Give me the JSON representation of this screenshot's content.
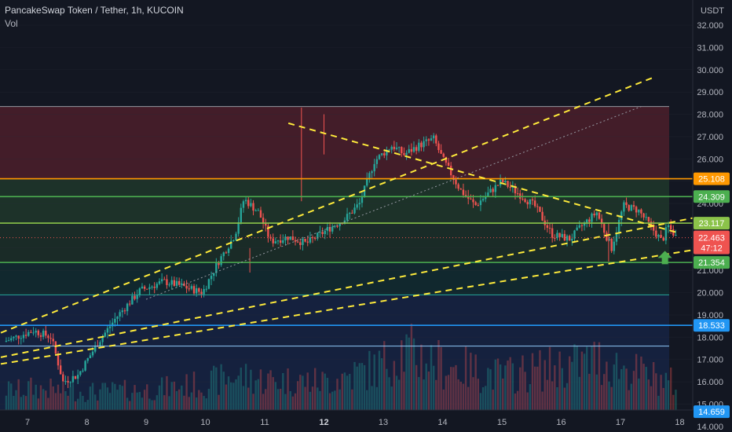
{
  "chart_data": {
    "type": "candlestick",
    "symbol": "PancakeSwap Token / Tether",
    "interval": "1h",
    "exchange": "KUCOIN",
    "indicator": "Vol",
    "currency": "USDT",
    "y_ticks": [
      "32.000",
      "31.000",
      "30.000",
      "29.000",
      "28.000",
      "27.000",
      "26.000",
      "25.000",
      "24.000",
      "23.000",
      "22.000",
      "21.000",
      "20.000",
      "19.000",
      "18.000",
      "17.000",
      "16.000",
      "15.000",
      "14.000"
    ],
    "x_ticks": [
      "7",
      "8",
      "9",
      "10",
      "11",
      "12",
      "13",
      "14",
      "15",
      "16",
      "17",
      "18"
    ],
    "last_price": "22.463",
    "countdown": "47:12",
    "levels": [
      {
        "label": "25.108",
        "value": 25.108,
        "color": "#ff9800"
      },
      {
        "label": "24.309",
        "value": 24.309,
        "color": "#4caf50"
      },
      {
        "label": "23.117",
        "value": 23.117,
        "color": "#8bc34a"
      },
      {
        "label": "21.354",
        "value": 21.354,
        "color": "#4caf50"
      },
      {
        "label": "18.533",
        "value": 18.533,
        "color": "#2196f3"
      },
      {
        "label": "14.659",
        "value": 14.659,
        "color": "#2196f3"
      }
    ],
    "plain_levels": [
      {
        "value": 28.35,
        "color": "#9598a1"
      },
      {
        "value": 19.9,
        "color": "#26a69a"
      },
      {
        "value": 17.6,
        "color": "#90caf9"
      }
    ],
    "zones": [
      {
        "from": 25.108,
        "to": 28.35,
        "color": "#f23645",
        "opacity": 0.22
      },
      {
        "from": 23.117,
        "to": 25.108,
        "color": "#4caf50",
        "opacity": 0.18
      },
      {
        "from": 21.354,
        "to": 23.117,
        "color": "#4caf50",
        "opacity": 0.13
      },
      {
        "from": 19.9,
        "to": 21.354,
        "color": "#089981",
        "opacity": 0.13
      },
      {
        "from": 13.5,
        "to": 19.9,
        "color": "#2962ff",
        "opacity": 0.13
      }
    ],
    "trendlines_dashed": [
      {
        "x1": -0.45,
        "y1": 18.2,
        "x2": 10.6,
        "y2": 29.7,
        "color": "#ffeb3b"
      },
      {
        "x1": -0.45,
        "y1": 17.1,
        "x2": 13.0,
        "y2": 24.3,
        "color": "#ffeb3b"
      },
      {
        "x1": -0.45,
        "y1": 16.8,
        "x2": 12.1,
        "y2": 22.3,
        "color": "#ffeb3b"
      },
      {
        "x1": 4.4,
        "y1": 27.6,
        "x2": 10.95,
        "y2": 22.7,
        "color": "#ffeb3b"
      }
    ],
    "trendlines_dotted": [
      {
        "x1": 2.0,
        "y1": 19.7,
        "x2": 10.35,
        "y2": 28.35,
        "color": "#9598a1"
      }
    ],
    "candle_anchors": [
      {
        "x": -0.4,
        "p": 17.8
      },
      {
        "x": 0.1,
        "p": 18.3
      },
      {
        "x": 0.4,
        "p": 18.0
      },
      {
        "x": 0.6,
        "p": 16.0
      },
      {
        "x": 0.85,
        "p": 16.3
      },
      {
        "x": 1.2,
        "p": 17.8
      },
      {
        "x": 1.5,
        "p": 18.9
      },
      {
        "x": 1.9,
        "p": 20.1
      },
      {
        "x": 2.3,
        "p": 20.5
      },
      {
        "x": 2.6,
        "p": 20.3
      },
      {
        "x": 2.95,
        "p": 20.0
      },
      {
        "x": 3.2,
        "p": 21.3
      },
      {
        "x": 3.5,
        "p": 22.6
      },
      {
        "x": 3.65,
        "p": 24.2
      },
      {
        "x": 3.9,
        "p": 23.6
      },
      {
        "x": 4.1,
        "p": 22.3
      },
      {
        "x": 4.4,
        "p": 22.5
      },
      {
        "x": 4.7,
        "p": 22.2
      },
      {
        "x": 5.1,
        "p": 22.9
      },
      {
        "x": 5.35,
        "p": 23.3
      },
      {
        "x": 5.6,
        "p": 24.0
      },
      {
        "x": 5.85,
        "p": 25.9
      },
      {
        "x": 6.15,
        "p": 26.6
      },
      {
        "x": 6.35,
        "p": 26.2
      },
      {
        "x": 6.6,
        "p": 26.6
      },
      {
        "x": 6.85,
        "p": 26.9
      },
      {
        "x": 7.0,
        "p": 26.0
      },
      {
        "x": 7.3,
        "p": 24.6
      },
      {
        "x": 7.55,
        "p": 23.9
      },
      {
        "x": 7.75,
        "p": 24.4
      },
      {
        "x": 8.0,
        "p": 25.0
      },
      {
        "x": 8.3,
        "p": 24.4
      },
      {
        "x": 8.55,
        "p": 23.9
      },
      {
        "x": 8.85,
        "p": 22.6
      },
      {
        "x": 9.15,
        "p": 22.4
      },
      {
        "x": 9.35,
        "p": 23.0
      },
      {
        "x": 9.6,
        "p": 23.6
      },
      {
        "x": 9.75,
        "p": 22.6
      },
      {
        "x": 9.85,
        "p": 22.0
      },
      {
        "x": 10.05,
        "p": 23.9
      },
      {
        "x": 10.3,
        "p": 23.7
      },
      {
        "x": 10.5,
        "p": 23.0
      },
      {
        "x": 10.7,
        "p": 22.3
      },
      {
        "x": 10.8,
        "p": 23.0
      },
      {
        "x": 10.95,
        "p": 22.46
      }
    ],
    "vol_profile": [
      {
        "x": 0.0,
        "v": 0.22
      },
      {
        "x": 1.0,
        "v": 0.18
      },
      {
        "x": 2.0,
        "v": 0.2
      },
      {
        "x": 3.0,
        "v": 0.26
      },
      {
        "x": 3.5,
        "v": 0.34
      },
      {
        "x": 4.0,
        "v": 0.3
      },
      {
        "x": 5.0,
        "v": 0.28
      },
      {
        "x": 5.9,
        "v": 0.42
      },
      {
        "x": 6.3,
        "v": 0.6
      },
      {
        "x": 7.0,
        "v": 0.45
      },
      {
        "x": 8.0,
        "v": 0.34
      },
      {
        "x": 9.2,
        "v": 0.45
      },
      {
        "x": 9.6,
        "v": 0.5
      },
      {
        "x": 10.4,
        "v": 0.35
      },
      {
        "x": 11.0,
        "v": 0.25
      }
    ]
  }
}
